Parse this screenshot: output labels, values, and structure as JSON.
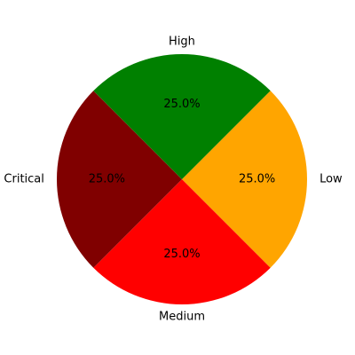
{
  "chart_data": {
    "type": "pie",
    "title": "",
    "categories": [
      "Low",
      "Medium",
      "Critical",
      "High"
    ],
    "values": [
      25,
      25,
      25,
      25
    ],
    "percent_labels": [
      "25.0%",
      "25.0%",
      "25.0%",
      "25.0%"
    ],
    "colors": [
      "#ffa500",
      "#ff0000",
      "#800000",
      "#008000"
    ],
    "start_angle_deg": 45,
    "direction": "counterclockwise",
    "legend": "none"
  }
}
